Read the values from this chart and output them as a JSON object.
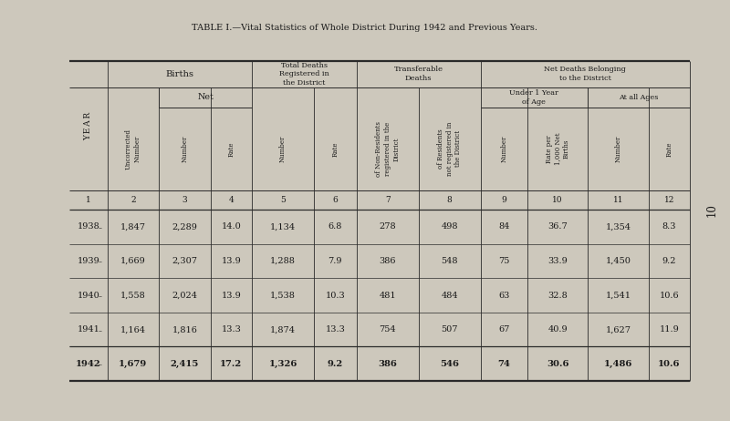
{
  "title": "TABLE I.—Vital Statistics of Whole District During 1942 and Previous Years.",
  "background_color": "#cdc8bc",
  "page_number": "10",
  "col_numbers": [
    "1",
    "2",
    "3",
    "4",
    "5",
    "6",
    "7",
    "8",
    "9",
    "10",
    "11",
    "12"
  ],
  "rows": [
    {
      "year": "1938",
      "bold": false,
      "vals": [
        "1,847",
        "2,289",
        "14.0",
        "1,134",
        "6.8",
        "278",
        "498",
        "84",
        "36.7",
        "1,354",
        "8.3"
      ]
    },
    {
      "year": "1939",
      "bold": false,
      "vals": [
        "1,669",
        "2,307",
        "13.9",
        "1,288",
        "7.9",
        "386",
        "548",
        "75",
        "33.9",
        "1,450",
        "9.2"
      ]
    },
    {
      "year": "1940",
      "bold": false,
      "vals": [
        "1,558",
        "2,024",
        "13.9",
        "1,538",
        "10.3",
        "481",
        "484",
        "63",
        "32.8",
        "1,541",
        "10.6"
      ]
    },
    {
      "year": "1941",
      "bold": false,
      "vals": [
        "1,164",
        "1,816",
        "13.3",
        "1,874",
        "13.3",
        "754",
        "507",
        "67",
        "40.9",
        "1,627",
        "11.9"
      ]
    },
    {
      "year": "1942",
      "bold": true,
      "vals": [
        "1,679",
        "2,415",
        "17.2",
        "1,326",
        "9.2",
        "386",
        "546",
        "74",
        "30.6",
        "1,486",
        "10.6"
      ]
    }
  ],
  "rotated_headers": [
    "Uncorrected\nNumber",
    "Number",
    "Rate",
    "Number",
    "Rate",
    "of Non-Residents\nregistered in the\nDistrict",
    "of Residents\nnot registered in\nthe District",
    "Number",
    "Rate per\n1,000 Net\nBirths",
    "Number",
    "Rate"
  ]
}
